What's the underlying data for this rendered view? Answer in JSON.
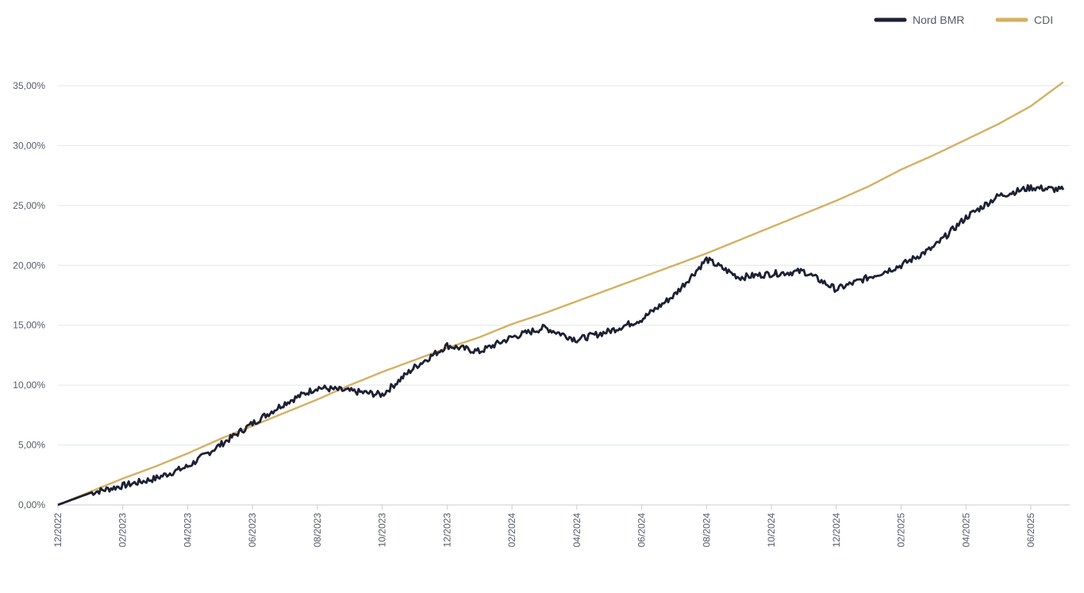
{
  "chart_data": {
    "type": "line",
    "title": "",
    "xlabel": "",
    "ylabel": "",
    "ylim": [
      0,
      35
    ],
    "yticks": [
      0,
      5,
      10,
      15,
      20,
      25,
      30,
      35
    ],
    "ytick_labels": [
      "0,00%",
      "5,00%",
      "10,00%",
      "15,00%",
      "20,00%",
      "25,00%",
      "30,00%",
      "35,00%"
    ],
    "xticks": [
      "12/2022",
      "02/2023",
      "04/2023",
      "06/2023",
      "08/2023",
      "10/2023",
      "12/2023",
      "02/2024",
      "04/2024",
      "06/2024",
      "08/2024",
      "10/2024",
      "12/2024",
      "02/2025",
      "04/2025",
      "06/2025"
    ],
    "x_range": [
      "12/2022",
      "07/2025"
    ],
    "grid": "horizontal",
    "legend_position": "top-right",
    "series": [
      {
        "name": "Nord BMR",
        "color": "#1c2033",
        "x": [
          "12/2022",
          "01/2023",
          "02/2023",
          "03/2023",
          "04/2023",
          "05/2023",
          "06/2023",
          "07/2023",
          "08/2023",
          "09/2023",
          "10/2023",
          "11/2023",
          "12/2023",
          "01/2024",
          "02/2024",
          "03/2024",
          "04/2024",
          "05/2024",
          "06/2024",
          "07/2024",
          "08/2024",
          "09/2024",
          "10/2024",
          "11/2024",
          "12/2024",
          "01/2025",
          "02/2025",
          "03/2025",
          "04/2025",
          "05/2025",
          "06/2025",
          "07/2025"
        ],
        "values": [
          0.0,
          1.0,
          1.6,
          2.2,
          3.2,
          5.0,
          6.8,
          8.5,
          9.8,
          9.5,
          9.2,
          11.5,
          13.3,
          12.8,
          14.0,
          14.8,
          13.8,
          14.5,
          15.5,
          17.5,
          20.5,
          19.0,
          19.3,
          19.5,
          18.0,
          19.0,
          20.0,
          21.5,
          24.0,
          25.8,
          26.5,
          26.3
        ]
      },
      {
        "name": "CDI",
        "color": "#d4b063",
        "x": [
          "12/2022",
          "01/2023",
          "02/2023",
          "03/2023",
          "04/2023",
          "05/2023",
          "06/2023",
          "07/2023",
          "08/2023",
          "09/2023",
          "10/2023",
          "11/2023",
          "12/2023",
          "01/2024",
          "02/2024",
          "03/2024",
          "04/2024",
          "05/2024",
          "06/2024",
          "07/2024",
          "08/2024",
          "09/2024",
          "10/2024",
          "11/2024",
          "12/2024",
          "01/2025",
          "02/2025",
          "03/2025",
          "04/2025",
          "05/2025",
          "06/2025",
          "07/2025"
        ],
        "values": [
          0.0,
          1.1,
          2.2,
          3.2,
          4.3,
          5.5,
          6.6,
          7.7,
          8.8,
          10.0,
          11.1,
          12.1,
          13.1,
          14.0,
          15.1,
          16.0,
          17.0,
          18.0,
          19.0,
          20.0,
          21.0,
          22.1,
          23.2,
          24.3,
          25.4,
          26.6,
          28.0,
          29.2,
          30.5,
          31.8,
          33.3,
          35.3
        ]
      }
    ]
  }
}
